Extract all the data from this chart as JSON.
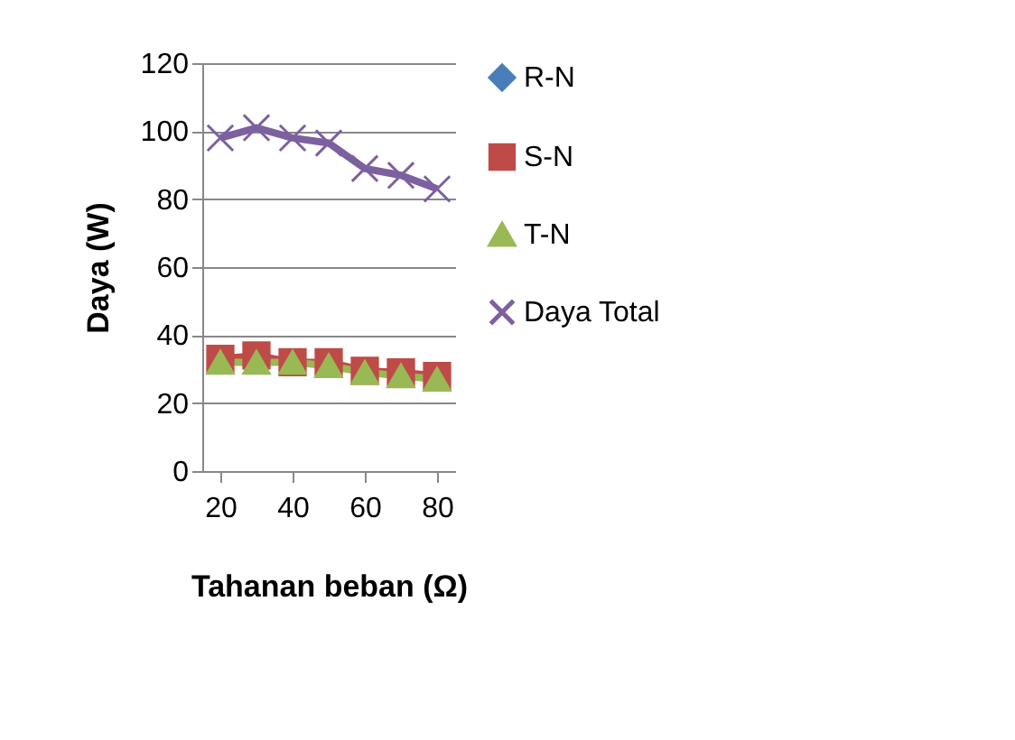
{
  "chart_data": {
    "type": "line",
    "xlabel": "Tahanan beban (Ω)",
    "ylabel": "Daya (W)",
    "x": [
      20,
      30,
      40,
      50,
      60,
      70,
      80
    ],
    "xlim": [
      15,
      85
    ],
    "xticks": [
      20,
      40,
      60,
      80
    ],
    "ylim": [
      0,
      120
    ],
    "yticks": [
      0,
      20,
      40,
      60,
      80,
      100,
      120
    ],
    "grid": "y",
    "legend": "right",
    "series": [
      {
        "name": "R-N",
        "color": "#4a7ebb",
        "marker": "diamond",
        "values": [
          null,
          null,
          null,
          null,
          null,
          null,
          null
        ]
      },
      {
        "name": "S-N",
        "color": "#be4b48",
        "marker": "square",
        "values": [
          33,
          34,
          32,
          32,
          29.5,
          29,
          28
        ]
      },
      {
        "name": "T-N",
        "color": "#98b954",
        "marker": "triangle",
        "values": [
          32,
          32,
          32,
          31,
          29,
          28,
          27
        ]
      },
      {
        "name": "Daya Total",
        "color": "#7d60a0",
        "marker": "cross",
        "values": [
          98,
          101,
          98,
          96.5,
          89,
          87,
          83
        ]
      }
    ]
  }
}
